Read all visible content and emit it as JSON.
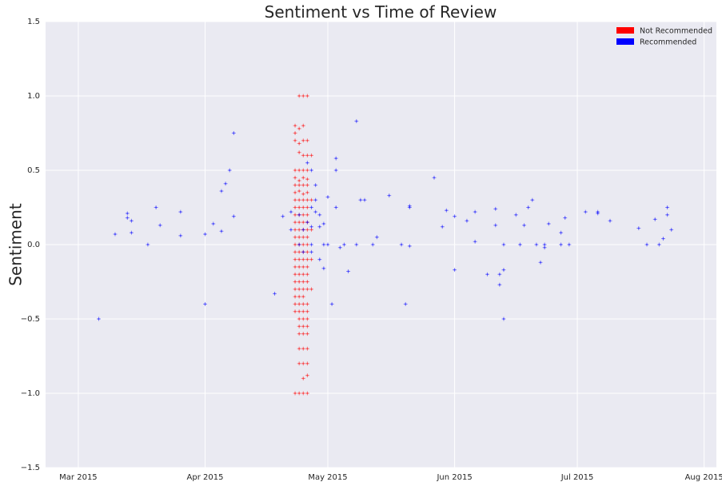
{
  "chart_data": {
    "type": "scatter",
    "title": "Sentiment vs Time of Review",
    "xlabel": "",
    "ylabel": "Sentiment",
    "x_axis_type": "date",
    "xlim": [
      "2015-02-21",
      "2015-08-04"
    ],
    "ylim": [
      -1.5,
      1.5
    ],
    "grid": true,
    "legend_position": "top-right",
    "x_ticks": [
      {
        "date": "2015-03-01",
        "label": "Mar 2015"
      },
      {
        "date": "2015-04-01",
        "label": "Apr 2015"
      },
      {
        "date": "2015-05-01",
        "label": "May 2015"
      },
      {
        "date": "2015-06-01",
        "label": "Jun 2015"
      },
      {
        "date": "2015-07-01",
        "label": "Jul 2015"
      },
      {
        "date": "2015-08-01",
        "label": "Aug 2015"
      }
    ],
    "y_ticks": [
      {
        "value": 1.5,
        "label": "1.5"
      },
      {
        "value": 1.0,
        "label": "1.0"
      },
      {
        "value": 0.5,
        "label": "0.5"
      },
      {
        "value": 0.0,
        "label": "0.0"
      },
      {
        "value": -0.5,
        "label": "−0.5"
      },
      {
        "value": -1.0,
        "label": "−1.0"
      },
      {
        "value": -1.5,
        "label": "−1.5"
      }
    ],
    "series": [
      {
        "name": "Not Recommended",
        "color": "#ff0000",
        "points": [
          [
            "2015-04-24",
            1.0
          ],
          [
            "2015-04-25",
            1.0
          ],
          [
            "2015-04-26",
            1.0
          ],
          [
            "2015-04-23",
            0.8
          ],
          [
            "2015-04-24",
            0.78
          ],
          [
            "2015-04-25",
            0.8
          ],
          [
            "2015-04-23",
            0.75
          ],
          [
            "2015-04-23",
            0.7
          ],
          [
            "2015-04-24",
            0.68
          ],
          [
            "2015-04-25",
            0.7
          ],
          [
            "2015-04-26",
            0.7
          ],
          [
            "2015-04-24",
            0.62
          ],
          [
            "2015-04-25",
            0.6
          ],
          [
            "2015-04-26",
            0.6
          ],
          [
            "2015-04-23",
            0.5
          ],
          [
            "2015-04-24",
            0.5
          ],
          [
            "2015-04-25",
            0.5
          ],
          [
            "2015-04-26",
            0.5
          ],
          [
            "2015-04-23",
            0.45
          ],
          [
            "2015-04-24",
            0.43
          ],
          [
            "2015-04-25",
            0.45
          ],
          [
            "2015-04-26",
            0.44
          ],
          [
            "2015-04-23",
            0.4
          ],
          [
            "2015-04-24",
            0.4
          ],
          [
            "2015-04-25",
            0.4
          ],
          [
            "2015-04-26",
            0.4
          ],
          [
            "2015-04-23",
            0.35
          ],
          [
            "2015-04-24",
            0.36
          ],
          [
            "2015-04-25",
            0.34
          ],
          [
            "2015-04-26",
            0.35
          ],
          [
            "2015-04-23",
            0.3
          ],
          [
            "2015-04-24",
            0.3
          ],
          [
            "2015-04-25",
            0.3
          ],
          [
            "2015-04-26",
            0.3
          ],
          [
            "2015-04-23",
            0.25
          ],
          [
            "2015-04-24",
            0.25
          ],
          [
            "2015-04-25",
            0.25
          ],
          [
            "2015-04-26",
            0.25
          ],
          [
            "2015-04-23",
            0.2
          ],
          [
            "2015-04-24",
            0.2
          ],
          [
            "2015-04-25",
            0.2
          ],
          [
            "2015-04-26",
            0.2
          ],
          [
            "2015-04-23",
            0.15
          ],
          [
            "2015-04-24",
            0.15
          ],
          [
            "2015-04-25",
            0.15
          ],
          [
            "2015-04-26",
            0.15
          ],
          [
            "2015-04-23",
            0.1
          ],
          [
            "2015-04-24",
            0.1
          ],
          [
            "2015-04-25",
            0.1
          ],
          [
            "2015-04-26",
            0.1
          ],
          [
            "2015-04-23",
            0.05
          ],
          [
            "2015-04-24",
            0.05
          ],
          [
            "2015-04-25",
            0.05
          ],
          [
            "2015-04-26",
            0.05
          ],
          [
            "2015-04-23",
            0.0
          ],
          [
            "2015-04-24",
            0.0
          ],
          [
            "2015-04-25",
            0.0
          ],
          [
            "2015-04-26",
            0.0
          ],
          [
            "2015-04-23",
            -0.05
          ],
          [
            "2015-04-24",
            -0.05
          ],
          [
            "2015-04-25",
            -0.05
          ],
          [
            "2015-04-26",
            -0.05
          ],
          [
            "2015-04-23",
            -0.1
          ],
          [
            "2015-04-24",
            -0.1
          ],
          [
            "2015-04-25",
            -0.1
          ],
          [
            "2015-04-26",
            -0.1
          ],
          [
            "2015-04-23",
            -0.15
          ],
          [
            "2015-04-24",
            -0.15
          ],
          [
            "2015-04-25",
            -0.15
          ],
          [
            "2015-04-26",
            -0.15
          ],
          [
            "2015-04-23",
            -0.2
          ],
          [
            "2015-04-24",
            -0.2
          ],
          [
            "2015-04-25",
            -0.2
          ],
          [
            "2015-04-26",
            -0.2
          ],
          [
            "2015-04-23",
            -0.25
          ],
          [
            "2015-04-24",
            -0.25
          ],
          [
            "2015-04-25",
            -0.25
          ],
          [
            "2015-04-26",
            -0.25
          ],
          [
            "2015-04-23",
            -0.3
          ],
          [
            "2015-04-24",
            -0.3
          ],
          [
            "2015-04-25",
            -0.3
          ],
          [
            "2015-04-26",
            -0.3
          ],
          [
            "2015-04-23",
            -0.35
          ],
          [
            "2015-04-24",
            -0.35
          ],
          [
            "2015-04-25",
            -0.35
          ],
          [
            "2015-04-23",
            -0.4
          ],
          [
            "2015-04-24",
            -0.4
          ],
          [
            "2015-04-25",
            -0.4
          ],
          [
            "2015-04-26",
            -0.4
          ],
          [
            "2015-04-23",
            -0.45
          ],
          [
            "2015-04-24",
            -0.45
          ],
          [
            "2015-04-25",
            -0.45
          ],
          [
            "2015-04-26",
            -0.45
          ],
          [
            "2015-04-24",
            -0.5
          ],
          [
            "2015-04-25",
            -0.5
          ],
          [
            "2015-04-26",
            -0.5
          ],
          [
            "2015-04-24",
            -0.55
          ],
          [
            "2015-04-25",
            -0.55
          ],
          [
            "2015-04-26",
            -0.55
          ],
          [
            "2015-04-24",
            -0.6
          ],
          [
            "2015-04-25",
            -0.6
          ],
          [
            "2015-04-26",
            -0.6
          ],
          [
            "2015-04-24",
            -0.7
          ],
          [
            "2015-04-25",
            -0.7
          ],
          [
            "2015-04-26",
            -0.7
          ],
          [
            "2015-04-24",
            -0.8
          ],
          [
            "2015-04-25",
            -0.8
          ],
          [
            "2015-04-26",
            -0.8
          ],
          [
            "2015-04-25",
            -0.9
          ],
          [
            "2015-04-26",
            -0.88
          ],
          [
            "2015-04-23",
            -1.0
          ],
          [
            "2015-04-24",
            -1.0
          ],
          [
            "2015-04-25",
            -1.0
          ],
          [
            "2015-04-26",
            -1.0
          ],
          [
            "2015-04-27",
            0.6
          ],
          [
            "2015-04-27",
            0.3
          ],
          [
            "2015-04-27",
            0.1
          ],
          [
            "2015-04-27",
            -0.1
          ],
          [
            "2015-04-27",
            -0.3
          ]
        ]
      },
      {
        "name": "Recommended",
        "color": "#0000ff",
        "points": [
          [
            "2015-03-06",
            -0.5
          ],
          [
            "2015-03-10",
            0.07
          ],
          [
            "2015-03-13",
            0.18
          ],
          [
            "2015-03-13",
            0.21
          ],
          [
            "2015-03-14",
            0.08
          ],
          [
            "2015-03-14",
            0.16
          ],
          [
            "2015-03-18",
            0.0
          ],
          [
            "2015-03-20",
            0.25
          ],
          [
            "2015-03-21",
            0.13
          ],
          [
            "2015-03-26",
            0.22
          ],
          [
            "2015-03-26",
            0.06
          ],
          [
            "2015-04-01",
            -0.4
          ],
          [
            "2015-04-01",
            0.07
          ],
          [
            "2015-04-03",
            0.14
          ],
          [
            "2015-04-05",
            0.09
          ],
          [
            "2015-04-05",
            0.36
          ],
          [
            "2015-04-06",
            0.41
          ],
          [
            "2015-04-07",
            0.5
          ],
          [
            "2015-04-08",
            0.75
          ],
          [
            "2015-04-08",
            0.19
          ],
          [
            "2015-04-18",
            -0.33
          ],
          [
            "2015-04-20",
            0.19
          ],
          [
            "2015-04-22",
            0.1
          ],
          [
            "2015-04-22",
            0.22
          ],
          [
            "2015-04-26",
            0.55
          ],
          [
            "2015-04-27",
            0.5
          ],
          [
            "2015-04-27",
            0.25
          ],
          [
            "2015-04-27",
            0.12
          ],
          [
            "2015-04-27",
            0.0
          ],
          [
            "2015-04-27",
            -0.05
          ],
          [
            "2015-04-28",
            0.4
          ],
          [
            "2015-04-28",
            0.3
          ],
          [
            "2015-04-28",
            0.22
          ],
          [
            "2015-04-29",
            0.12
          ],
          [
            "2015-04-29",
            0.2
          ],
          [
            "2015-04-29",
            -0.1
          ],
          [
            "2015-04-30",
            0.14
          ],
          [
            "2015-04-30",
            0.0
          ],
          [
            "2015-04-30",
            -0.16
          ],
          [
            "2015-05-01",
            0.32
          ],
          [
            "2015-05-01",
            0.0
          ],
          [
            "2015-05-02",
            -0.4
          ],
          [
            "2015-05-03",
            0.25
          ],
          [
            "2015-05-03",
            0.58
          ],
          [
            "2015-05-03",
            0.5
          ],
          [
            "2015-05-04",
            -0.02
          ],
          [
            "2015-05-05",
            0.0
          ],
          [
            "2015-05-06",
            -0.18
          ],
          [
            "2015-05-08",
            0.0
          ],
          [
            "2015-05-08",
            0.83
          ],
          [
            "2015-05-09",
            0.3
          ],
          [
            "2015-05-10",
            0.3
          ],
          [
            "2015-05-12",
            0.0
          ],
          [
            "2015-05-13",
            0.05
          ],
          [
            "2015-05-16",
            0.33
          ],
          [
            "2015-05-19",
            0.0
          ],
          [
            "2015-05-20",
            -0.4
          ],
          [
            "2015-05-21",
            0.26
          ],
          [
            "2015-05-21",
            0.25
          ],
          [
            "2015-05-21",
            -0.01
          ],
          [
            "2015-05-27",
            0.45
          ],
          [
            "2015-05-29",
            0.12
          ],
          [
            "2015-05-30",
            0.23
          ],
          [
            "2015-06-01",
            0.19
          ],
          [
            "2015-06-01",
            -0.17
          ],
          [
            "2015-06-04",
            0.16
          ],
          [
            "2015-06-06",
            0.22
          ],
          [
            "2015-06-06",
            0.02
          ],
          [
            "2015-06-09",
            -0.2
          ],
          [
            "2015-06-11",
            0.24
          ],
          [
            "2015-06-11",
            0.13
          ],
          [
            "2015-06-12",
            -0.2
          ],
          [
            "2015-06-12",
            -0.27
          ],
          [
            "2015-06-13",
            0.0
          ],
          [
            "2015-06-13",
            -0.17
          ],
          [
            "2015-06-13",
            -0.5
          ],
          [
            "2015-06-16",
            0.2
          ],
          [
            "2015-06-17",
            0.0
          ],
          [
            "2015-06-18",
            0.13
          ],
          [
            "2015-06-19",
            0.25
          ],
          [
            "2015-06-20",
            0.3
          ],
          [
            "2015-06-21",
            0.0
          ],
          [
            "2015-06-22",
            -0.12
          ],
          [
            "2015-06-23",
            -0.02
          ],
          [
            "2015-06-23",
            0.0
          ],
          [
            "2015-06-24",
            0.14
          ],
          [
            "2015-06-27",
            0.08
          ],
          [
            "2015-06-27",
            0.0
          ],
          [
            "2015-06-28",
            0.18
          ],
          [
            "2015-06-29",
            0.0
          ],
          [
            "2015-07-03",
            0.22
          ],
          [
            "2015-07-06",
            0.22
          ],
          [
            "2015-07-06",
            0.21
          ],
          [
            "2015-07-09",
            0.16
          ],
          [
            "2015-07-16",
            0.11
          ],
          [
            "2015-07-18",
            0.0
          ],
          [
            "2015-07-20",
            0.17
          ],
          [
            "2015-07-21",
            0.0
          ],
          [
            "2015-07-22",
            0.04
          ],
          [
            "2015-07-23",
            0.2
          ],
          [
            "2015-07-23",
            0.25
          ],
          [
            "2015-07-24",
            0.1
          ],
          [
            "2015-04-24",
            0.2
          ],
          [
            "2015-04-25",
            0.1
          ],
          [
            "2015-04-24",
            0.0
          ],
          [
            "2015-04-25",
            -0.05
          ],
          [
            "2015-04-26",
            0.15
          ]
        ]
      }
    ]
  }
}
